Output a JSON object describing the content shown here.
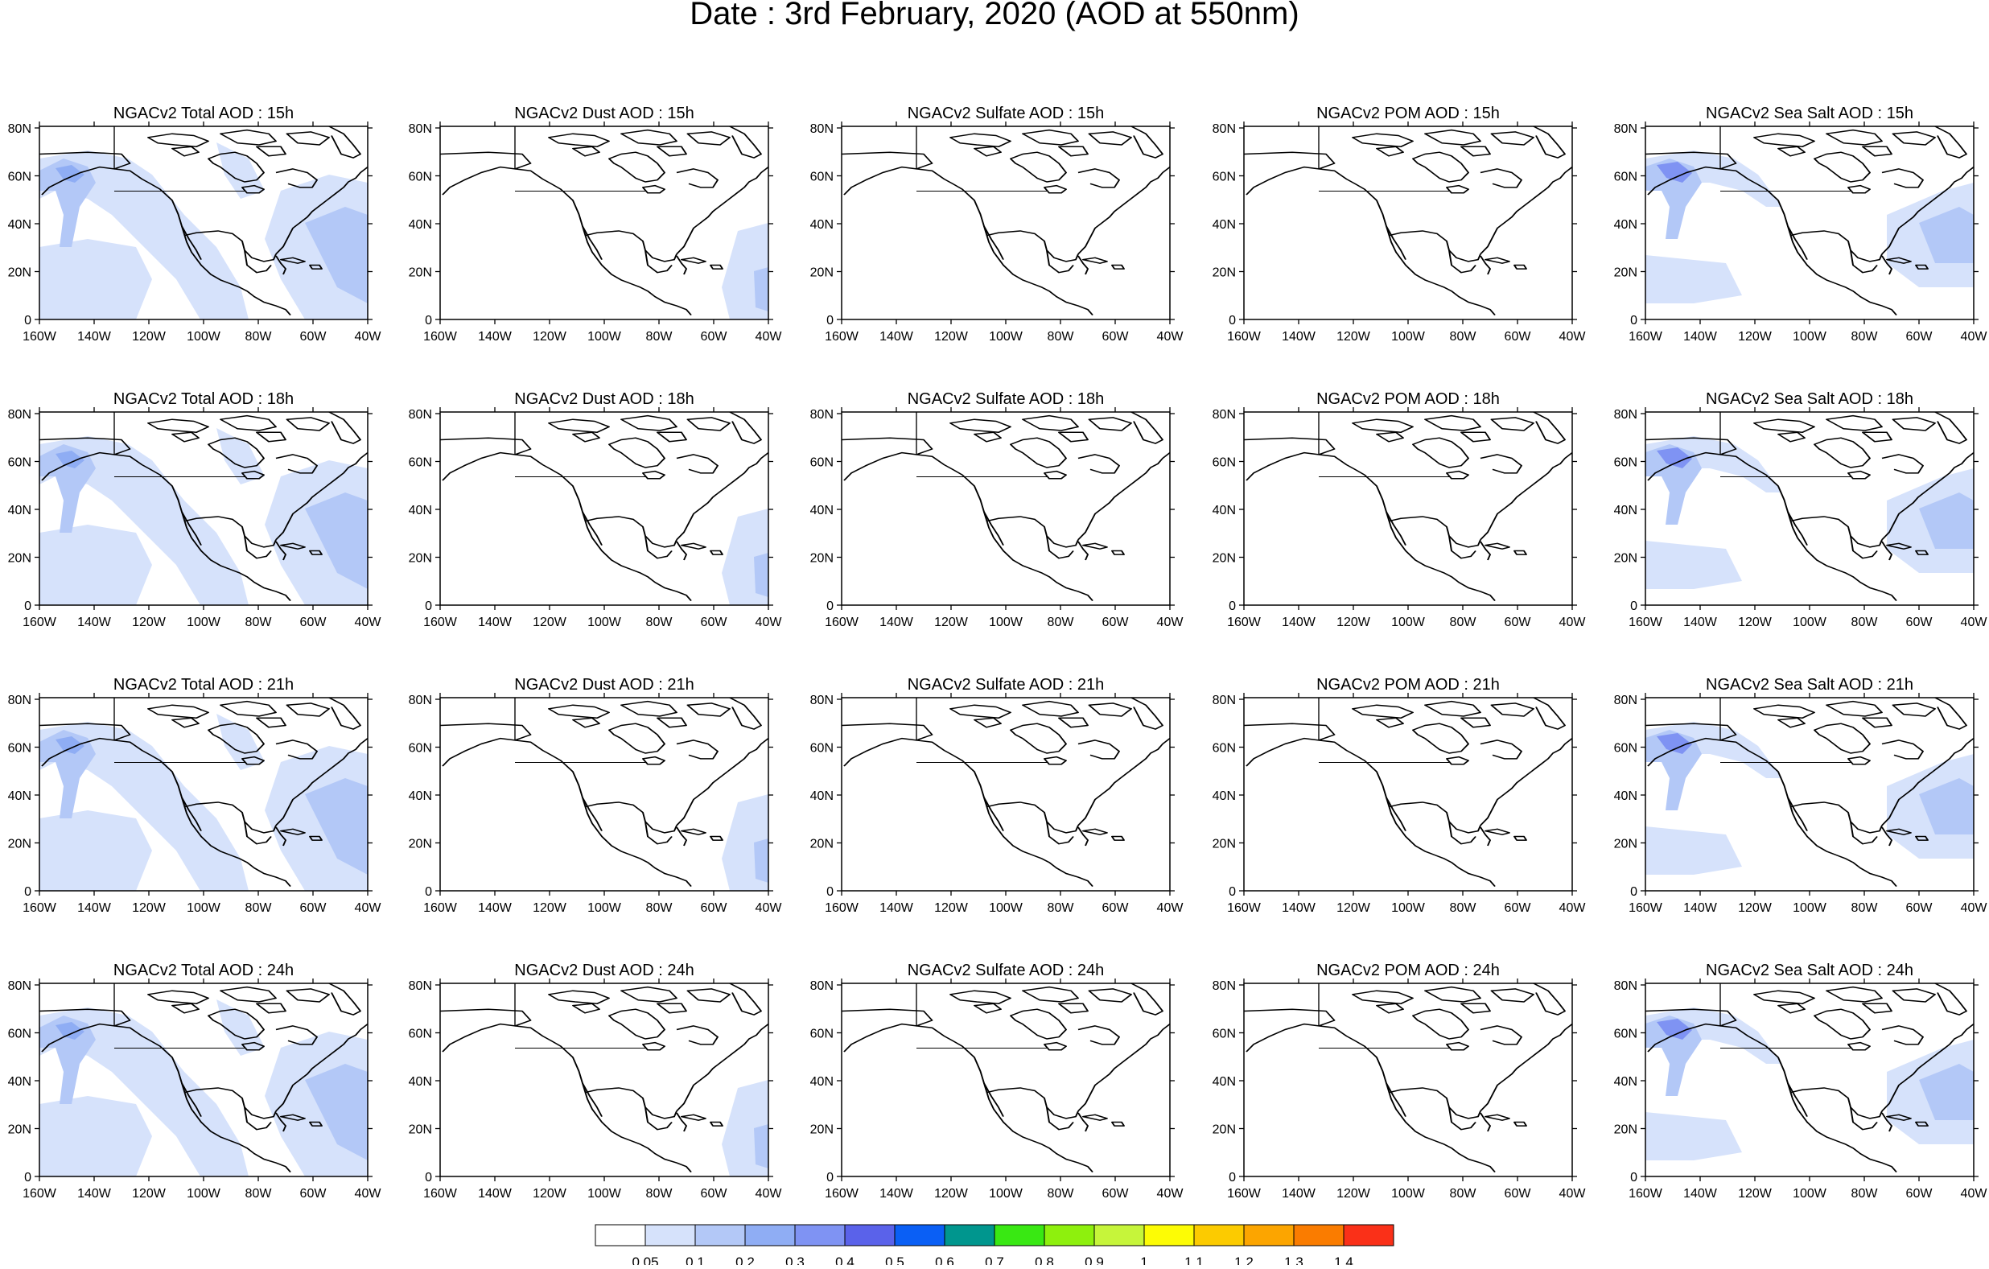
{
  "title": "Date : 3rd February, 2020 (AOD at 550nm)",
  "lat_labels": [
    "80N",
    "60N",
    "40N",
    "20N",
    "0"
  ],
  "lon_labels": [
    "160W",
    "140W",
    "120W",
    "100W",
    "80W",
    "60W",
    "40W"
  ],
  "panels": [
    [
      "NGACv2 Total AOD : 15h",
      "NGACv2 Dust AOD : 15h",
      "NGACv2 Sulfate AOD : 15h",
      "NGACv2 POM AOD : 15h",
      "NGACv2 Sea Salt AOD : 15h"
    ],
    [
      "NGACv2 Total AOD : 18h",
      "NGACv2 Dust AOD : 18h",
      "NGACv2 Sulfate AOD : 18h",
      "NGACv2 POM AOD : 18h",
      "NGACv2 Sea Salt AOD : 18h"
    ],
    [
      "NGACv2 Total AOD : 21h",
      "NGACv2 Dust AOD : 21h",
      "NGACv2 Sulfate AOD : 21h",
      "NGACv2 POM AOD : 21h",
      "NGACv2 Sea Salt AOD : 21h"
    ],
    [
      "NGACv2 Total AOD : 24h",
      "NGACv2 Dust AOD : 24h",
      "NGACv2 Sulfate AOD : 24h",
      "NGACv2 POM AOD : 24h",
      "NGACv2 Sea Salt  AOD : 24h"
    ]
  ],
  "colorbar": {
    "colors": [
      "#ffffff",
      "#d6e2fb",
      "#b3c8f7",
      "#8fadf4",
      "#7f93f3",
      "#5a62ea",
      "#0a5ff5",
      "#00968e",
      "#39e813",
      "#8ef00d",
      "#c6f53a",
      "#fdfc05",
      "#fccb00",
      "#fca500",
      "#fa7c00",
      "#fa3018"
    ],
    "labels": [
      "0.05",
      "0.1",
      "0.2",
      "0.3",
      "0.4",
      "0.5",
      "0.6",
      "0.7",
      "0.8",
      "0.9",
      "1",
      "1.1",
      "1.2",
      "1.3",
      "1.4"
    ]
  }
}
